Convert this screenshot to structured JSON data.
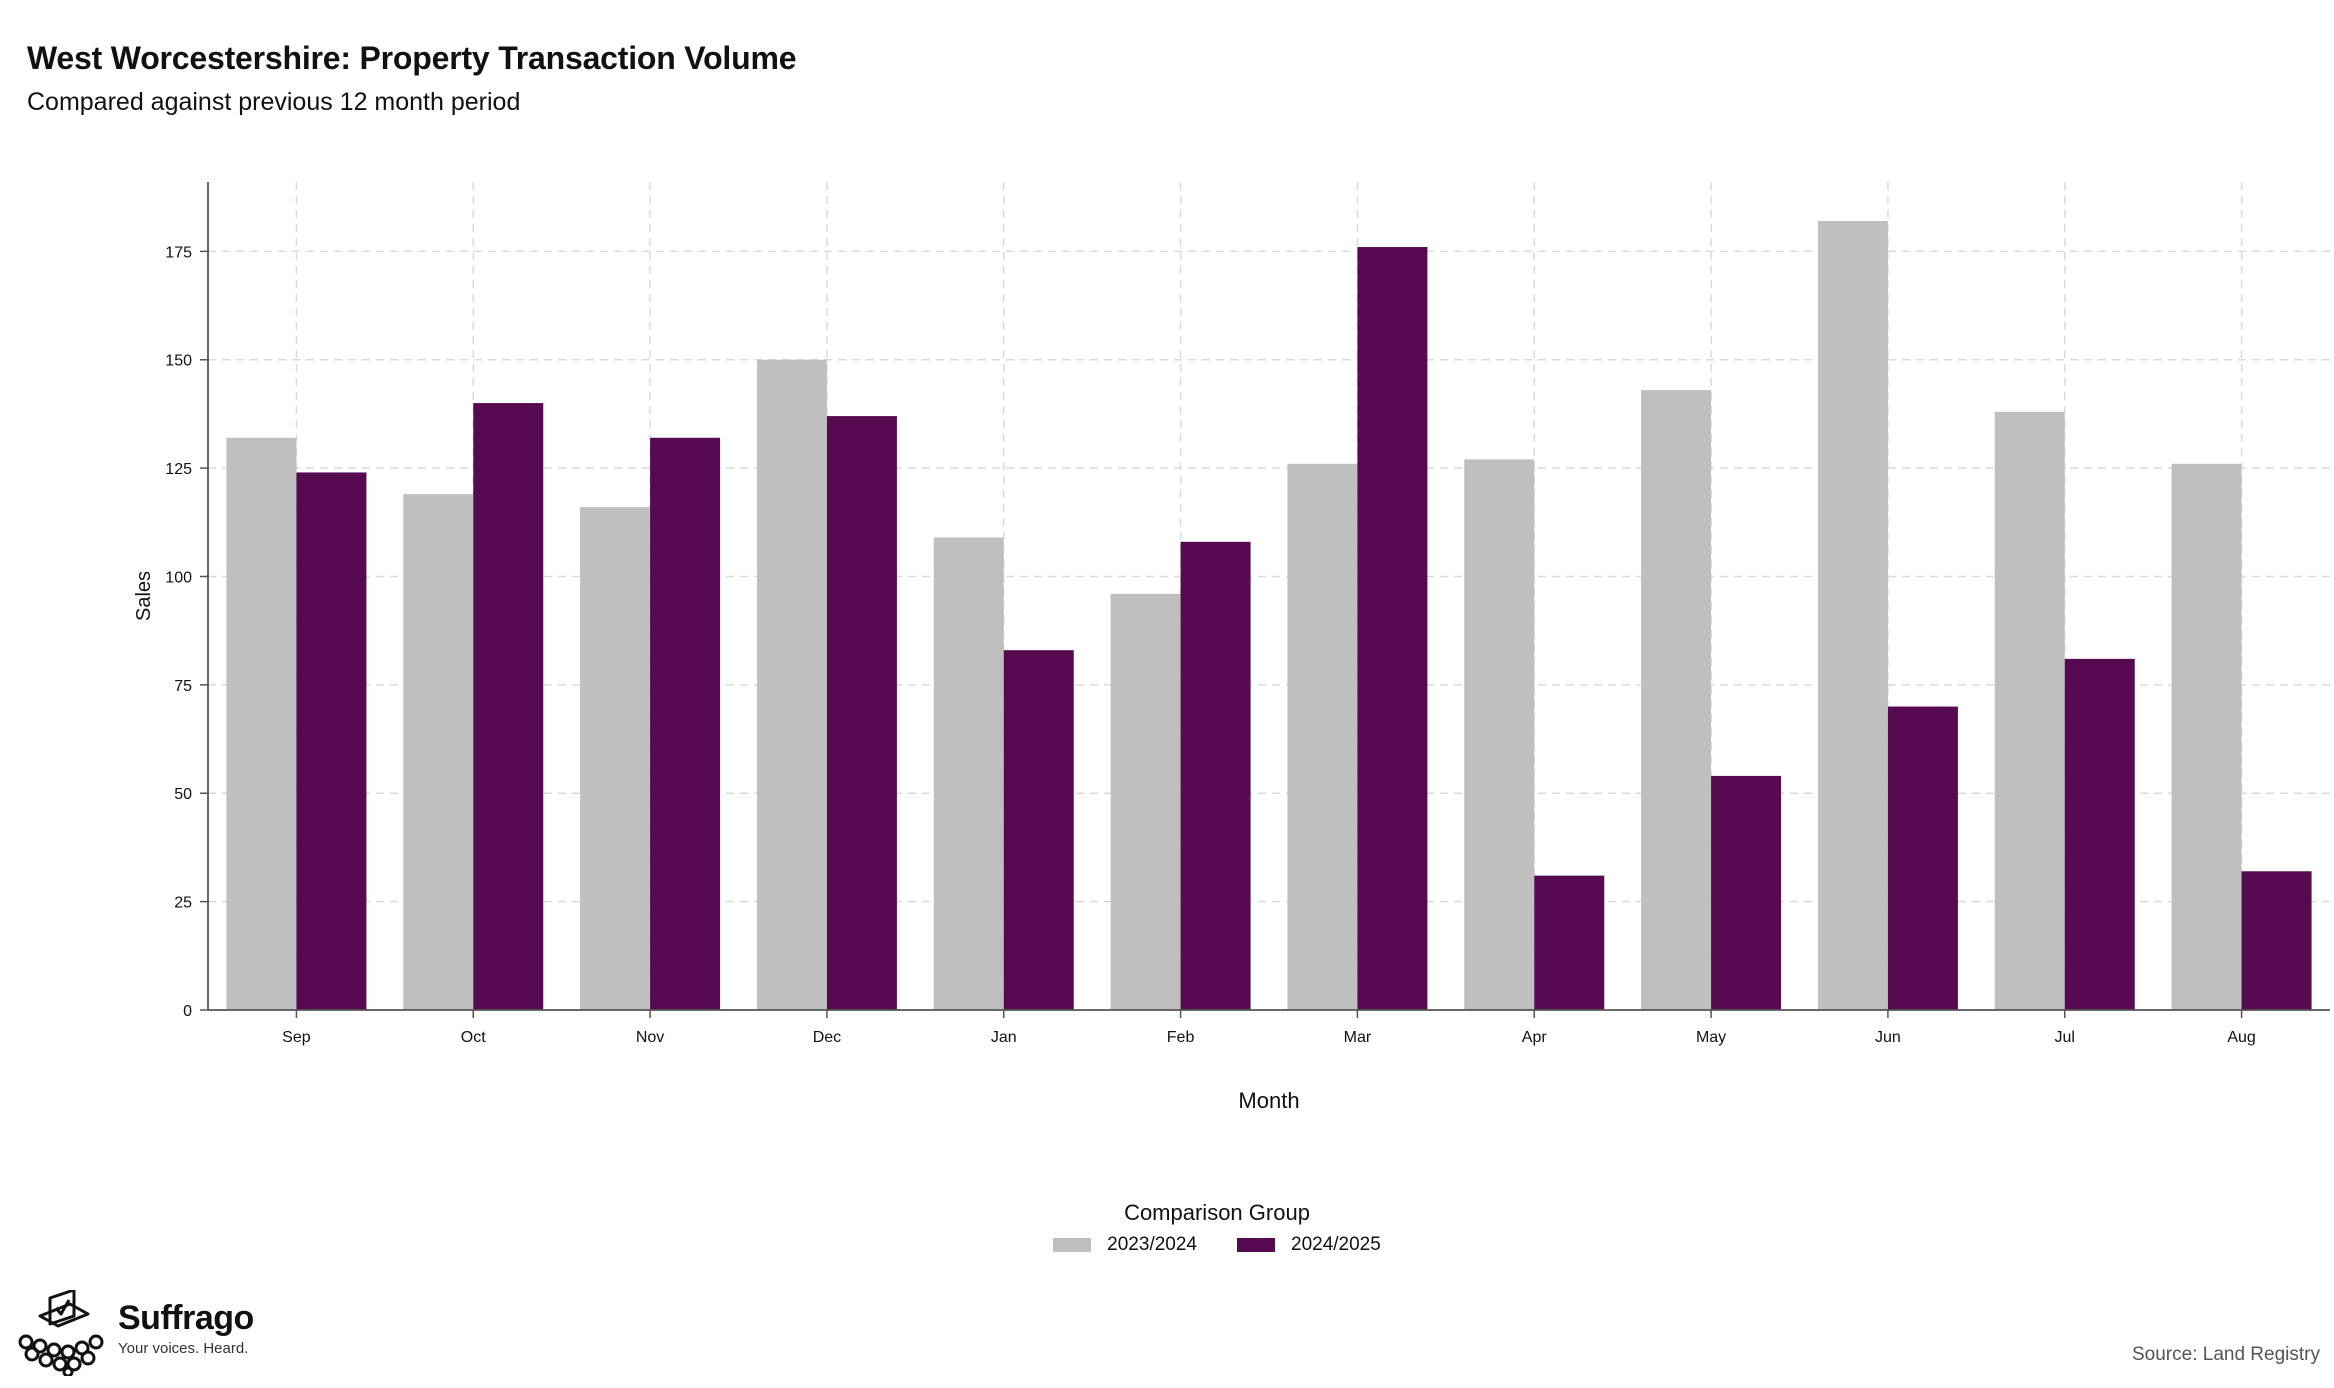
{
  "header": {
    "title": "West Worcestershire: Property Transaction Volume",
    "subtitle": "Compared against previous 12 month period"
  },
  "chart_data": {
    "type": "bar",
    "xlabel": "Month",
    "ylabel": "Sales",
    "categories": [
      "Sep",
      "Oct",
      "Nov",
      "Dec",
      "Jan",
      "Feb",
      "Mar",
      "Apr",
      "May",
      "Jun",
      "Jul",
      "Aug"
    ],
    "series": [
      {
        "name": "2023/2024",
        "color": "#bfbfbf",
        "values": [
          132,
          119,
          116,
          150,
          109,
          96,
          126,
          127,
          143,
          182,
          138,
          126
        ]
      },
      {
        "name": "2024/2025",
        "color": "#560b50",
        "values": [
          124,
          140,
          132,
          137,
          83,
          108,
          176,
          31,
          54,
          70,
          81,
          32
        ]
      }
    ],
    "yticks": [
      0,
      25,
      50,
      75,
      100,
      125,
      150,
      175
    ],
    "ylim": [
      0,
      191
    ],
    "grid": true,
    "legend": {
      "title": "Comparison Group",
      "placement": "bottom-center"
    }
  },
  "branding": {
    "name": "Suffrago",
    "tagline": "Your voices. Heard.",
    "logo_icon": "ballot-box-icon"
  },
  "footer": {
    "source": "Source: Land Registry"
  }
}
